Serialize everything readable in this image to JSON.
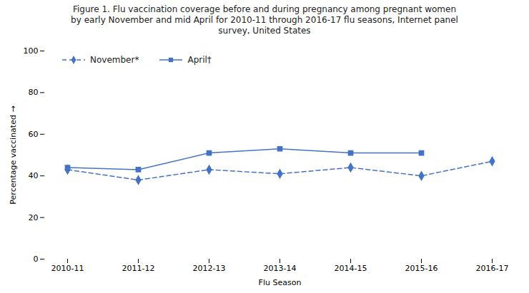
{
  "chart_data": {
    "type": "line",
    "title": "Figure 1. Flu vaccination coverage before and during pregnancy among pregnant women\nby early November and mid April for 2010-11 through  2016-17 flu seasons,  Internet panel\nsurvey, United States",
    "xlabel": "Flu Season",
    "ylabel": "Percentage vaccinated",
    "categories": [
      "2010-11",
      "2011-12",
      "2012-13",
      "2013-14",
      "2014-15",
      "2015-16",
      "2016-17"
    ],
    "series": [
      {
        "name": "November*",
        "color": "#4472C4",
        "marker": "diamond",
        "line_style": "dashed",
        "values": [
          43,
          38,
          43,
          41,
          44,
          40,
          47
        ]
      },
      {
        "name": "April†",
        "color": "#4472C4",
        "marker": "square",
        "line_style": "solid",
        "values": [
          44,
          43,
          51,
          53,
          51,
          51,
          null
        ]
      }
    ],
    "ylim": [
      0,
      100
    ],
    "yticks": [
      0,
      20,
      40,
      60,
      80,
      100
    ],
    "grid": false,
    "legend": "upper left"
  }
}
